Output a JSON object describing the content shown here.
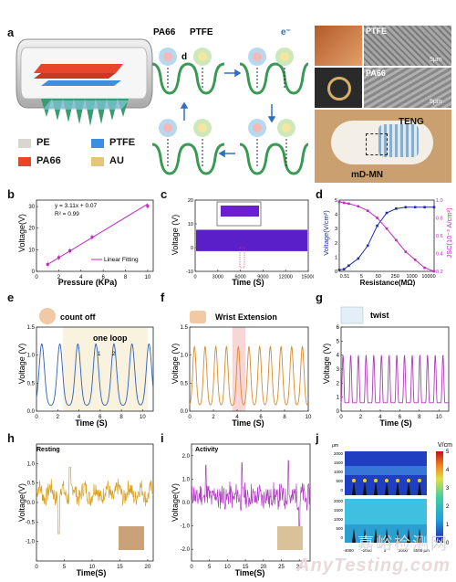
{
  "panel_labels": [
    "a",
    "b",
    "c",
    "d",
    "e",
    "f",
    "g",
    "h",
    "i",
    "j"
  ],
  "panel_a": {
    "legend": [
      {
        "label": "PE",
        "color": "#d8d6cf"
      },
      {
        "label": "PTFE",
        "color": "#3c8fe0"
      },
      {
        "label": "PA66",
        "color": "#e8452e"
      },
      {
        "label": "AU",
        "color": "#e3c67a"
      }
    ],
    "mech_labels": {
      "pa66": "PA66",
      "ptfe": "PTFE",
      "d": "d",
      "e": "e⁻"
    },
    "photo_labels": {
      "ptfe": "PTFE",
      "pa66": "PA66",
      "scale1": "5μm",
      "scale2": "5μm",
      "teng": "TENG",
      "mdmn": "mD-MN"
    }
  },
  "chart_data": [
    {
      "type": "scatter",
      "panel": "b",
      "xlabel": "Pressure (KPa)",
      "ylabel": "Voltage(V)",
      "xlim": [
        0,
        10.5
      ],
      "ylim": [
        0,
        33
      ],
      "xticks": [
        0,
        2,
        4,
        6,
        8,
        10
      ],
      "yticks": [
        0,
        10,
        20,
        30
      ],
      "x": [
        1,
        2,
        3,
        5,
        10
      ],
      "values": [
        3.2,
        6.4,
        9.5,
        15.8,
        30.2
      ],
      "fit_label": "Linear Fitting",
      "equation": "y = 3.11x + 0.07",
      "r2": "R² = 0.99"
    },
    {
      "type": "line",
      "panel": "c",
      "xlabel": "Time (S)",
      "ylabel": "Voltage (V)",
      "xlim": [
        0,
        15000
      ],
      "ylim": [
        -10,
        20
      ],
      "xticks": [
        0,
        3000,
        6000,
        9000,
        12000,
        15000
      ],
      "yticks": [
        -10,
        0,
        10,
        20
      ],
      "band": [
        -1.5,
        7.5
      ]
    },
    {
      "type": "line",
      "panel": "d",
      "xlabel": "Resistance(MΩ)",
      "ylabel": "Voltage(V/cm²)",
      "ylabel2": "JSC(10⁻³ A/cm²)",
      "categories": [
        "0.51",
        "5",
        "50",
        "250",
        "1000",
        "10000"
      ],
      "ylim": [
        0,
        5
      ],
      "ylim2": [
        0.2,
        1.0
      ],
      "yticks": [
        0,
        1,
        2,
        3,
        4,
        5
      ],
      "yticks2": [
        "0.2",
        "0.4",
        "0.6",
        "0.8",
        "1.0"
      ],
      "x": [
        0,
        0.05,
        0.1,
        0.2,
        0.3,
        0.4,
        0.5,
        0.6,
        0.7,
        0.8,
        0.9,
        1.0
      ],
      "series": [
        {
          "values": [
            0.1,
            0.15,
            0.4,
            0.9,
            1.8,
            3.2,
            4.1,
            4.4,
            4.5,
            4.5,
            4.5,
            4.5
          ],
          "color": "#1f2f9e"
        },
        {
          "values": [
            0.98,
            0.97,
            0.96,
            0.93,
            0.88,
            0.8,
            0.68,
            0.55,
            0.42,
            0.33,
            0.24,
            0.2
          ],
          "color": "#c02ac0"
        }
      ]
    },
    {
      "type": "line",
      "panel": "e",
      "xlabel": "Time (S)",
      "ylabel": "Voltage (V)",
      "xlim": [
        0,
        11
      ],
      "ylim": [
        0,
        1.5
      ],
      "xticks": [
        0,
        2,
        4,
        6,
        8,
        10
      ],
      "yticks": [
        "0.0",
        "0.5",
        "1.0",
        "1.5"
      ],
      "annotations": [
        "count off",
        "one loop",
        "1",
        "2"
      ],
      "color": "#2f5fb5",
      "shade": [
        [
          2.5,
          10.5
        ]
      ],
      "peaks": [
        0.5,
        2.2,
        3.9,
        5.6,
        7.3,
        9.0,
        10.6
      ],
      "peak_height": 1.1
    },
    {
      "type": "line",
      "panel": "f",
      "xlabel": "Time (S)",
      "ylabel": "Voltage (V)",
      "xlim": [
        0,
        10
      ],
      "ylim": [
        0,
        1.5
      ],
      "xticks": [
        0,
        2,
        4,
        6,
        8,
        10
      ],
      "yticks": [
        "0.0",
        "0.5",
        "1.0",
        "1.5"
      ],
      "annotations": [
        "Wrist Extension"
      ],
      "color": "#d98a2c",
      "shade": [
        [
          3.6,
          4.7
        ]
      ],
      "peaks": [
        0.4,
        1.3,
        2.2,
        3.1,
        4.1,
        5.0,
        5.9,
        6.8,
        7.7,
        8.6,
        9.5
      ],
      "peak_height": 1.05
    },
    {
      "type": "line",
      "panel": "g",
      "xlabel": "Time (S)",
      "ylabel": "Voltage (V)",
      "xlim": [
        0,
        11
      ],
      "ylim": [
        0,
        6
      ],
      "xticks": [
        0,
        2,
        4,
        6,
        8,
        10
      ],
      "yticks": [
        0,
        1,
        2,
        3,
        4,
        5,
        6
      ],
      "annotations": [
        "twist"
      ],
      "color": "#b03ab8",
      "peak_count": 28,
      "peak_height": 3.4
    },
    {
      "type": "line",
      "panel": "h",
      "xlabel": "Time(S)",
      "ylabel": "Voltage(V)",
      "xlim": [
        0,
        21
      ],
      "ylim": [
        -1.5,
        1.5
      ],
      "xticks": [
        0,
        5,
        10,
        15,
        20
      ],
      "yticks": [
        "-1.0",
        "-0.5",
        "0.0",
        "0.5",
        "1.0"
      ],
      "annotations": [
        "Resting"
      ],
      "color": "#d9a020"
    },
    {
      "type": "line",
      "panel": "i",
      "xlabel": "Time(S)",
      "ylabel": "Voltage(V)",
      "xlim": [
        0,
        33
      ],
      "ylim": [
        -2.5,
        2.5
      ],
      "xticks": [
        0,
        5,
        10,
        15,
        20,
        25,
        30
      ],
      "yticks": [
        "-2.0",
        "-1.0",
        "0.0",
        "1.0",
        "2.0"
      ],
      "annotations": [
        "Activity"
      ],
      "color": "#b040c0"
    },
    {
      "type": "heatmap",
      "panel": "j",
      "colorbar_label": "V/cm",
      "colorbar_ticks": [
        0,
        1,
        2,
        3,
        4,
        5
      ],
      "yticks": [
        "2000",
        "1500",
        "1000",
        "500",
        "0"
      ],
      "xticks": [
        "-4000",
        "-2000",
        "0",
        "2000",
        "4000 μm"
      ],
      "yunit": "μm"
    }
  ]
}
